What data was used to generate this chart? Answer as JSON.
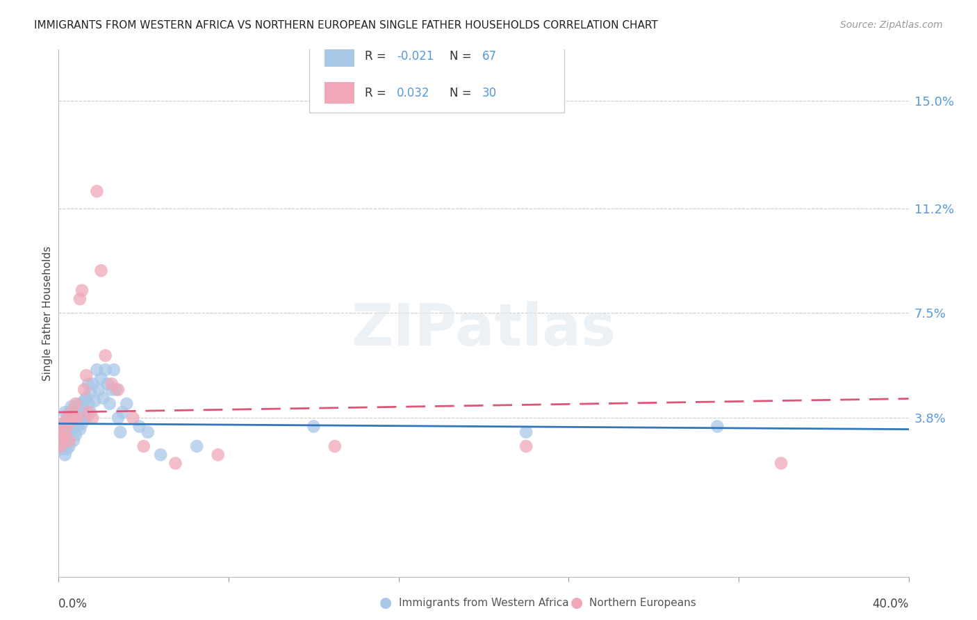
{
  "title": "IMMIGRANTS FROM WESTERN AFRICA VS NORTHERN EUROPEAN SINGLE FATHER HOUSEHOLDS CORRELATION CHART",
  "source": "Source: ZipAtlas.com",
  "ylabel": "Single Father Households",
  "yticks": [
    "15.0%",
    "11.2%",
    "7.5%",
    "3.8%"
  ],
  "ytick_vals": [
    0.15,
    0.112,
    0.075,
    0.038
  ],
  "xlim": [
    0.0,
    0.4
  ],
  "ylim": [
    -0.018,
    0.168
  ],
  "background_color": "#ffffff",
  "watermark": "ZIPatlas",
  "series_blue": {
    "label": "Immigrants from Western Africa",
    "color": "#a8c8e8",
    "R": -0.021,
    "N": 67,
    "x": [
      0.001,
      0.001,
      0.001,
      0.002,
      0.002,
      0.002,
      0.002,
      0.003,
      0.003,
      0.003,
      0.003,
      0.003,
      0.004,
      0.004,
      0.004,
      0.004,
      0.005,
      0.005,
      0.005,
      0.005,
      0.006,
      0.006,
      0.006,
      0.007,
      0.007,
      0.007,
      0.008,
      0.008,
      0.008,
      0.009,
      0.009,
      0.01,
      0.01,
      0.01,
      0.011,
      0.011,
      0.012,
      0.012,
      0.013,
      0.013,
      0.014,
      0.014,
      0.015,
      0.015,
      0.016,
      0.017,
      0.018,
      0.019,
      0.02,
      0.021,
      0.022,
      0.023,
      0.024,
      0.025,
      0.026,
      0.027,
      0.028,
      0.029,
      0.03,
      0.032,
      0.038,
      0.042,
      0.048,
      0.065,
      0.12,
      0.22,
      0.31
    ],
    "y": [
      0.033,
      0.03,
      0.027,
      0.036,
      0.033,
      0.03,
      0.027,
      0.04,
      0.036,
      0.033,
      0.03,
      0.025,
      0.038,
      0.035,
      0.031,
      0.027,
      0.04,
      0.036,
      0.033,
      0.028,
      0.042,
      0.038,
      0.034,
      0.041,
      0.036,
      0.03,
      0.042,
      0.037,
      0.032,
      0.04,
      0.035,
      0.043,
      0.039,
      0.034,
      0.042,
      0.036,
      0.044,
      0.038,
      0.045,
      0.038,
      0.05,
      0.043,
      0.047,
      0.04,
      0.05,
      0.044,
      0.055,
      0.048,
      0.052,
      0.045,
      0.055,
      0.05,
      0.043,
      0.048,
      0.055,
      0.048,
      0.038,
      0.033,
      0.04,
      0.043,
      0.035,
      0.033,
      0.025,
      0.028,
      0.035,
      0.033,
      0.035
    ]
  },
  "series_pink": {
    "label": "Northern Europeans",
    "color": "#f0a8b8",
    "R": 0.032,
    "N": 30,
    "x": [
      0.001,
      0.001,
      0.002,
      0.002,
      0.003,
      0.004,
      0.005,
      0.005,
      0.006,
      0.007,
      0.008,
      0.009,
      0.01,
      0.011,
      0.012,
      0.013,
      0.014,
      0.016,
      0.018,
      0.02,
      0.022,
      0.025,
      0.028,
      0.035,
      0.04,
      0.055,
      0.075,
      0.13,
      0.22,
      0.34
    ],
    "y": [
      0.033,
      0.028,
      0.036,
      0.03,
      0.033,
      0.038,
      0.036,
      0.03,
      0.04,
      0.038,
      0.043,
      0.038,
      0.08,
      0.083,
      0.048,
      0.053,
      0.04,
      0.038,
      0.118,
      0.09,
      0.06,
      0.05,
      0.048,
      0.038,
      0.028,
      0.022,
      0.025,
      0.028,
      0.028,
      0.022
    ]
  },
  "grid_color": "#cccccc",
  "trend_blue_color": "#3377bb",
  "trend_pink_color": "#dd5577",
  "axis_label_color": "#5599dd",
  "tick_color": "#999999"
}
